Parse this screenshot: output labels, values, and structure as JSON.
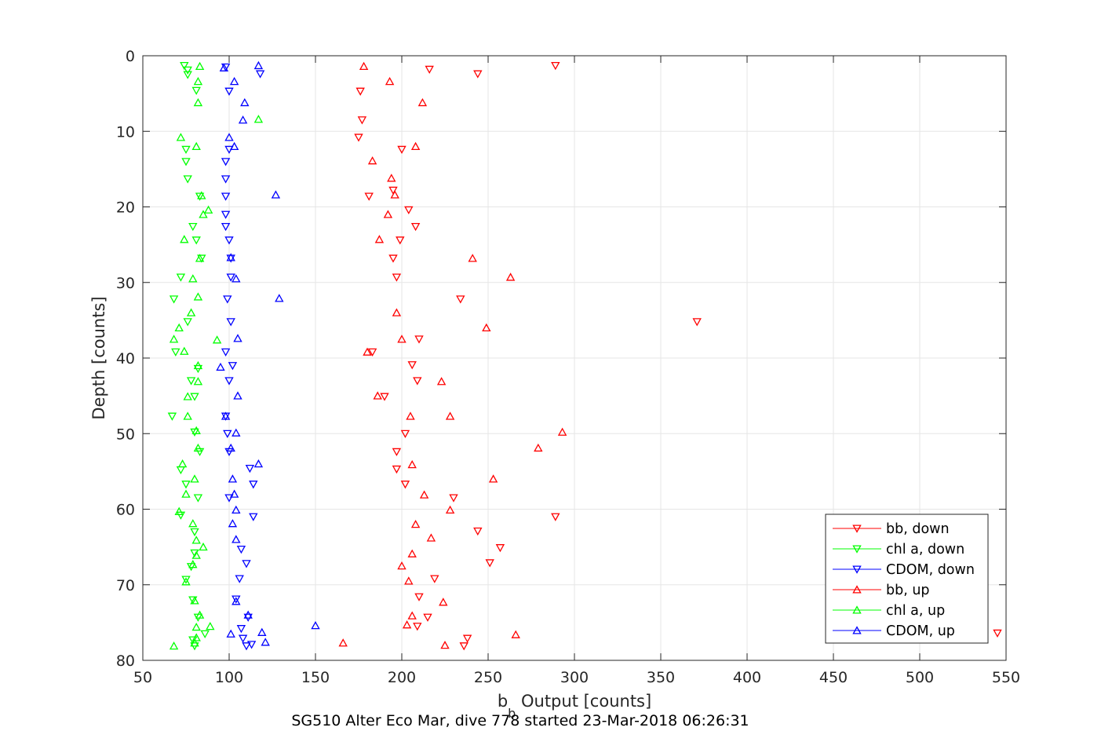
{
  "chart_data": {
    "type": "scatter",
    "xlabel": "b",
    "xlabel_subscript": "b",
    "xlabel_suffix": " Output [counts]",
    "ylabel": "Depth [counts]",
    "caption": "SG510 Alter Eco Mar, dive 778 started 23-Mar-2018 06:26:31",
    "xlim": [
      50,
      550
    ],
    "ylim": [
      0,
      80
    ],
    "y_reversed": true,
    "xticks": [
      50,
      100,
      150,
      200,
      250,
      300,
      350,
      400,
      450,
      500,
      550
    ],
    "yticks": [
      0,
      10,
      20,
      30,
      40,
      50,
      60,
      70,
      80
    ],
    "grid": true,
    "legend_position": "bottom-right",
    "series": [
      {
        "name": "bb, down",
        "color": "#ff0000",
        "marker": "triangle-down",
        "points": [
          [
            289,
            1.3
          ],
          [
            216,
            1.8
          ],
          [
            244,
            2.4
          ],
          [
            176,
            4.7
          ],
          [
            177,
            8.5
          ],
          [
            175,
            10.8
          ],
          [
            200,
            12.4
          ],
          [
            195,
            17.8
          ],
          [
            181,
            18.6
          ],
          [
            204,
            20.4
          ],
          [
            208,
            22.6
          ],
          [
            199,
            24.4
          ],
          [
            195,
            26.8
          ],
          [
            197,
            29.3
          ],
          [
            234,
            32.2
          ],
          [
            371,
            35.2
          ],
          [
            210,
            37.5
          ],
          [
            183,
            39.2
          ],
          [
            206,
            40.9
          ],
          [
            209,
            43
          ],
          [
            190,
            45.1
          ],
          [
            202,
            50
          ],
          [
            197,
            52.4
          ],
          [
            197,
            54.7
          ],
          [
            202,
            56.7
          ],
          [
            230,
            58.5
          ],
          [
            289,
            61
          ],
          [
            244,
            62.9
          ],
          [
            257,
            65.1
          ],
          [
            251,
            67.1
          ],
          [
            219,
            69.2
          ],
          [
            210,
            71.6
          ],
          [
            215,
            74.3
          ],
          [
            209,
            75.5
          ],
          [
            238,
            77.1
          ],
          [
            236,
            78.1
          ],
          [
            545,
            76.4
          ]
        ]
      },
      {
        "name": "chl a, down",
        "color": "#00ff00",
        "marker": "triangle-down",
        "points": [
          [
            74,
            1.3
          ],
          [
            76,
            1.9
          ],
          [
            76,
            2.5
          ],
          [
            81,
            4.6
          ],
          [
            75,
            12.4
          ],
          [
            75,
            14
          ],
          [
            76,
            16.3
          ],
          [
            83,
            18.6
          ],
          [
            79,
            22.6
          ],
          [
            81,
            24.4
          ],
          [
            84,
            26.8
          ],
          [
            72,
            29.3
          ],
          [
            68,
            32.2
          ],
          [
            76,
            35.2
          ],
          [
            69,
            39.2
          ],
          [
            82,
            41.4
          ],
          [
            78,
            43
          ],
          [
            80,
            45.1
          ],
          [
            67,
            47.7
          ],
          [
            80,
            49.8
          ],
          [
            83,
            52.4
          ],
          [
            72,
            54.8
          ],
          [
            75,
            56.7
          ],
          [
            82,
            58.5
          ],
          [
            72,
            60.8
          ],
          [
            80,
            63
          ],
          [
            80,
            65.8
          ],
          [
            78,
            67.6
          ],
          [
            75,
            69.3
          ],
          [
            79,
            72
          ],
          [
            82,
            74.3
          ],
          [
            86,
            76.5
          ],
          [
            79,
            77.3
          ],
          [
            80,
            78.1
          ]
        ]
      },
      {
        "name": "CDOM, down",
        "color": "#0000ff",
        "marker": "triangle-down",
        "points": [
          [
            98,
            1.5
          ],
          [
            118,
            2.4
          ],
          [
            100,
            4.7
          ],
          [
            100,
            12.4
          ],
          [
            98,
            14
          ],
          [
            98,
            16.3
          ],
          [
            98,
            18.6
          ],
          [
            98,
            21
          ],
          [
            98,
            22.6
          ],
          [
            100,
            24.4
          ],
          [
            101,
            26.8
          ],
          [
            101,
            29.3
          ],
          [
            99,
            32.2
          ],
          [
            101,
            35.2
          ],
          [
            98,
            39.2
          ],
          [
            102,
            41
          ],
          [
            100,
            43
          ],
          [
            98,
            47.7
          ],
          [
            99,
            50
          ],
          [
            100,
            52.4
          ],
          [
            112,
            54.6
          ],
          [
            114,
            56.7
          ],
          [
            100,
            58.5
          ],
          [
            114,
            61
          ],
          [
            107,
            65.3
          ],
          [
            110,
            67.2
          ],
          [
            106,
            69.2
          ],
          [
            104,
            71.9
          ],
          [
            111,
            74.3
          ],
          [
            107,
            75.8
          ],
          [
            108,
            77.1
          ],
          [
            110,
            78.1
          ],
          [
            113,
            77.9
          ]
        ]
      },
      {
        "name": "bb, up",
        "color": "#ff0000",
        "marker": "triangle-up",
        "points": [
          [
            178,
            1.4
          ],
          [
            193,
            3.4
          ],
          [
            212,
            6.2
          ],
          [
            208,
            12
          ],
          [
            183,
            13.9
          ],
          [
            194,
            16.2
          ],
          [
            196,
            18.4
          ],
          [
            192,
            21
          ],
          [
            187,
            24.3
          ],
          [
            241,
            26.8
          ],
          [
            263,
            29.3
          ],
          [
            197,
            34
          ],
          [
            249,
            36
          ],
          [
            200,
            37.5
          ],
          [
            180,
            39.2
          ],
          [
            223,
            43.1
          ],
          [
            186,
            45
          ],
          [
            205,
            47.7
          ],
          [
            228,
            47.7
          ],
          [
            293,
            49.8
          ],
          [
            279,
            51.9
          ],
          [
            206,
            54.1
          ],
          [
            253,
            56
          ],
          [
            213,
            58.1
          ],
          [
            228,
            60.1
          ],
          [
            208,
            62
          ],
          [
            217,
            63.8
          ],
          [
            206,
            65.9
          ],
          [
            200,
            67.5
          ],
          [
            204,
            69.5
          ],
          [
            224,
            72.3
          ],
          [
            206,
            74.1
          ],
          [
            203,
            75.3
          ],
          [
            266,
            76.6
          ],
          [
            166,
            77.7
          ],
          [
            225,
            78
          ]
        ]
      },
      {
        "name": "chl a, up",
        "color": "#00ff00",
        "marker": "triangle-up",
        "points": [
          [
            83,
            1.4
          ],
          [
            82,
            3.4
          ],
          [
            82,
            6.2
          ],
          [
            117,
            8.4
          ],
          [
            72,
            10.8
          ],
          [
            81,
            12
          ],
          [
            84,
            18.5
          ],
          [
            88,
            20.4
          ],
          [
            85,
            21
          ],
          [
            74,
            24.3
          ],
          [
            83,
            26.8
          ],
          [
            79,
            29.5
          ],
          [
            82,
            31.9
          ],
          [
            78,
            34
          ],
          [
            71,
            36
          ],
          [
            68,
            37.5
          ],
          [
            93,
            37.6
          ],
          [
            74,
            39.1
          ],
          [
            82,
            41
          ],
          [
            82,
            43.1
          ],
          [
            76,
            45.1
          ],
          [
            76,
            47.7
          ],
          [
            81,
            49.6
          ],
          [
            82,
            51.9
          ],
          [
            73,
            54
          ],
          [
            80,
            56
          ],
          [
            75,
            58
          ],
          [
            71,
            60.3
          ],
          [
            79,
            61.9
          ],
          [
            81,
            64.1
          ],
          [
            85,
            65
          ],
          [
            81,
            66.1
          ],
          [
            79,
            67.3
          ],
          [
            75,
            69.6
          ],
          [
            80,
            72.1
          ],
          [
            83,
            74
          ],
          [
            89,
            75.5
          ],
          [
            81,
            75.6
          ],
          [
            81,
            77
          ],
          [
            80,
            77.7
          ],
          [
            68,
            78.1
          ]
        ]
      },
      {
        "name": "CDOM, up",
        "color": "#0000ff",
        "marker": "triangle-up",
        "points": [
          [
            117,
            1.3
          ],
          [
            97,
            1.6
          ],
          [
            103,
            3.4
          ],
          [
            109,
            6.2
          ],
          [
            108,
            8.5
          ],
          [
            100,
            10.8
          ],
          [
            103,
            12
          ],
          [
            127,
            18.4
          ],
          [
            101,
            26.7
          ],
          [
            104,
            29.5
          ],
          [
            129,
            32.1
          ],
          [
            105,
            37.4
          ],
          [
            95,
            41.2
          ],
          [
            105,
            45
          ],
          [
            98,
            47.7
          ],
          [
            104,
            49.9
          ],
          [
            101,
            51.9
          ],
          [
            117,
            54
          ],
          [
            102,
            56
          ],
          [
            103,
            58
          ],
          [
            104,
            60.1
          ],
          [
            102,
            61.9
          ],
          [
            104,
            64
          ],
          [
            111,
            74
          ],
          [
            150,
            75.4
          ],
          [
            101,
            76.5
          ],
          [
            119,
            76.3
          ],
          [
            121,
            77.6
          ],
          [
            104,
            72.2
          ]
        ]
      }
    ]
  }
}
